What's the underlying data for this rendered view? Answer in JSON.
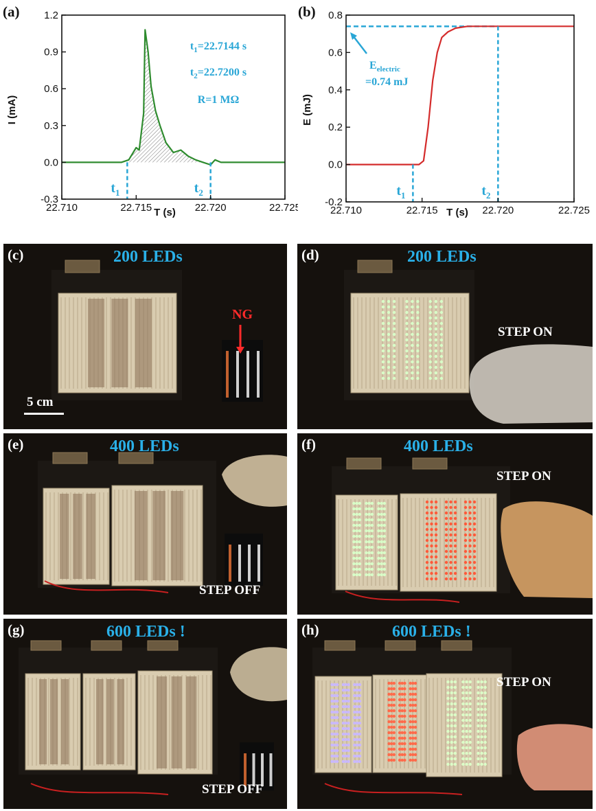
{
  "panels": {
    "a": {
      "tag": "(a)"
    },
    "b": {
      "tag": "(b)"
    },
    "c": {
      "tag": "(c)",
      "title": "200 LEDs",
      "ng_label": "NG",
      "scale_label": "5 cm"
    },
    "d": {
      "tag": "(d)",
      "title": "200 LEDs",
      "caption": "STEP ON"
    },
    "e": {
      "tag": "(e)",
      "title": "400 LEDs",
      "caption": "STEP OFF"
    },
    "f": {
      "tag": "(f)",
      "title": "400 LEDs",
      "caption": "STEP ON"
    },
    "g": {
      "tag": "(g)",
      "title": "600 LEDs !",
      "caption": "STEP OFF"
    },
    "h": {
      "tag": "(h)",
      "title": "600 LEDs !",
      "caption": "STEP ON"
    }
  },
  "chart_data": [
    {
      "type": "area",
      "xlabel": "T (s)",
      "ylabel": "I (mA)",
      "xlim": [
        22.71,
        22.725
      ],
      "ylim": [
        -0.3,
        1.2
      ],
      "xticks": [
        "22.710",
        "22.715",
        "22.720",
        "22.725"
      ],
      "yticks": [
        "-0.3",
        "0.0",
        "0.3",
        "0.6",
        "0.9",
        "1.2"
      ],
      "color": "#2e8b2e",
      "x": [
        22.71,
        22.714,
        22.7145,
        22.7148,
        22.715,
        22.7152,
        22.7155,
        22.7156,
        22.7158,
        22.716,
        22.7163,
        22.7166,
        22.717,
        22.7175,
        22.718,
        22.7185,
        22.719,
        22.7195,
        22.72,
        22.7203,
        22.7207,
        22.721,
        22.722,
        22.725
      ],
      "y": [
        0.0,
        0.0,
        0.02,
        0.08,
        0.12,
        0.1,
        0.4,
        1.08,
        0.9,
        0.62,
        0.42,
        0.3,
        0.16,
        0.08,
        0.1,
        0.05,
        0.02,
        0.0,
        -0.02,
        0.02,
        0.0,
        0.0,
        0.0,
        0.0
      ],
      "shaded_range": [
        22.7144,
        22.72
      ],
      "markers": [
        {
          "label": "t1",
          "x": 22.7144
        },
        {
          "label": "t2",
          "x": 22.72
        }
      ],
      "annotations": [
        "t1=22.7144 s",
        "t2=22.7200 s",
        "R=1 MΩ"
      ]
    },
    {
      "type": "line",
      "xlabel": "T (s)",
      "ylabel": "E (mJ)",
      "xlim": [
        22.71,
        22.725
      ],
      "ylim": [
        -0.2,
        0.8
      ],
      "xticks": [
        "22.710",
        "22.715",
        "22.720",
        "22.725"
      ],
      "yticks": [
        "-0.2",
        "0.0",
        "0.2",
        "0.4",
        "0.6",
        "0.8"
      ],
      "color": "#d42b2b",
      "x": [
        22.71,
        22.7148,
        22.7151,
        22.7154,
        22.7157,
        22.716,
        22.7163,
        22.7167,
        22.7172,
        22.718,
        22.72,
        22.725
      ],
      "y": [
        0.0,
        0.0,
        0.02,
        0.2,
        0.45,
        0.6,
        0.68,
        0.71,
        0.73,
        0.74,
        0.74,
        0.74
      ],
      "markers": [
        {
          "label": "t1",
          "x": 22.7144
        },
        {
          "label": "t2",
          "x": 22.72
        }
      ],
      "hline": 0.74,
      "annotations": [
        "E_electric =0.74 mJ"
      ]
    }
  ]
}
